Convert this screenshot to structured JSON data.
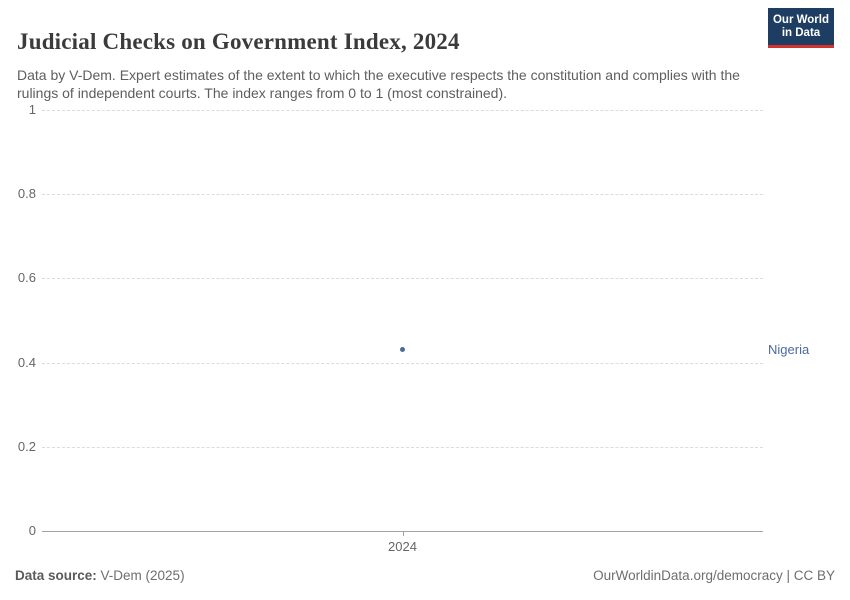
{
  "header": {
    "title": "Judicial Checks on Government Index, 2024",
    "subtitle": "Data by V-Dem. Expert estimates of the extent to which the executive respects the constitution and complies with the rulings of independent courts. The index ranges from 0 to 1 (most constrained).",
    "logo": {
      "line1": "Our World",
      "line2": "in Data",
      "bg_color": "#1d3d63",
      "accent_color": "#d1342f"
    }
  },
  "chart_data": {
    "type": "scatter",
    "title": "Judicial Checks on Government Index, 2024",
    "x": [
      2024
    ],
    "x_tick_labels": [
      "2024"
    ],
    "series": [
      {
        "name": "Nigeria",
        "values": [
          0.43
        ],
        "color": "#4C6A9C"
      }
    ],
    "ylim": [
      0,
      1
    ],
    "y_ticks": [
      0,
      0.2,
      0.4,
      0.6,
      0.8,
      1
    ],
    "xlabel": "",
    "ylabel": "",
    "grid": "horizontal-dashed",
    "legend": "entity-label-right"
  },
  "footer": {
    "source_label": "Data source:",
    "source_value": " V-Dem (2025)",
    "credit": "OurWorldinData.org/democracy | CC BY"
  }
}
